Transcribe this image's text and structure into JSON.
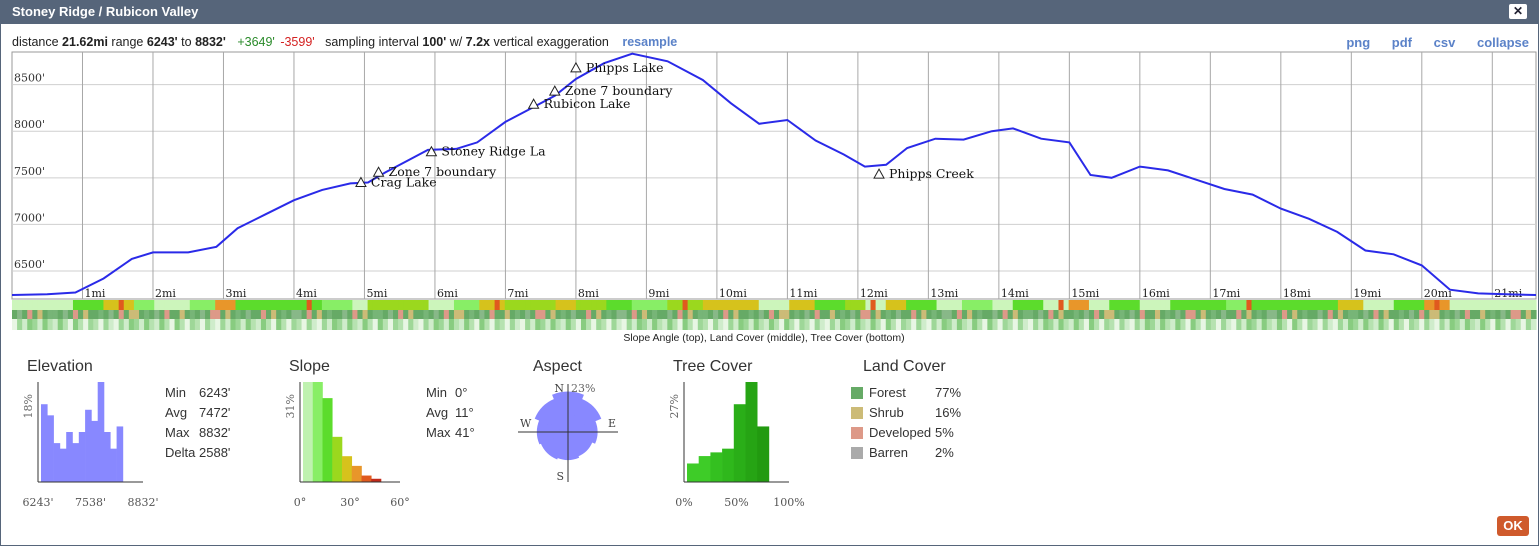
{
  "window": {
    "title": "Stoney Ridge / Rubicon Valley",
    "close": "✕"
  },
  "summary": {
    "distance_label": "distance",
    "distance": "21.62mi",
    "range_label": "range",
    "range_min": "6243'",
    "to_label": "to",
    "range_max": "8832'",
    "gain": "+3649'",
    "loss": "-3599'",
    "interval_label": "sampling interval",
    "interval": "100'",
    "w_label": "w/",
    "exaggeration": "7.2x",
    "exag_label": "vertical exaggeration",
    "resample": "resample"
  },
  "actions": {
    "png": "png",
    "pdf": "pdf",
    "csv": "csv",
    "collapse": "collapse"
  },
  "chart_data": {
    "type": "line",
    "x_unit": "mi",
    "y_unit": "ft",
    "xlim": [
      0,
      21.62
    ],
    "ylim": [
      6200,
      8850
    ],
    "y_ticks": [
      "6500'",
      "7000'",
      "7500'",
      "8000'",
      "8500'"
    ],
    "x_ticks": [
      "1mi",
      "2mi",
      "3mi",
      "4mi",
      "5mi",
      "6mi",
      "7mi",
      "8mi",
      "9mi",
      "10mi",
      "11mi",
      "12mi",
      "13mi",
      "14mi",
      "15mi",
      "16mi",
      "17mi",
      "18mi",
      "19mi",
      "20mi",
      "21mi"
    ],
    "series": [
      {
        "x": [
          0,
          0.5,
          0.9,
          1.3,
          1.7,
          2.0,
          2.5,
          2.9,
          3.2,
          3.6,
          4.0,
          4.4,
          4.8,
          5.05,
          5.3,
          5.6,
          5.9,
          6.3,
          6.6,
          7.0,
          7.3,
          7.7,
          8.0,
          8.4,
          8.8,
          9.3,
          9.8,
          10.2,
          10.6,
          11.0,
          11.4,
          11.8,
          12.1,
          12.4,
          12.7,
          13.1,
          13.5,
          13.9,
          14.2,
          14.6,
          15.0,
          15.3,
          15.6,
          16.0,
          16.4,
          16.8,
          17.2,
          17.6,
          18.0,
          18.4,
          18.8,
          19.2,
          19.6,
          20.0,
          20.4,
          20.8,
          21.2,
          21.62
        ],
        "y": [
          6243,
          6250,
          6270,
          6420,
          6630,
          6700,
          6700,
          6760,
          6960,
          7110,
          7260,
          7370,
          7440,
          7450,
          7560,
          7680,
          7800,
          7810,
          7880,
          8100,
          8220,
          8380,
          8560,
          8730,
          8832,
          8750,
          8550,
          8300,
          8080,
          8120,
          7900,
          7750,
          7620,
          7640,
          7820,
          7920,
          7910,
          8000,
          8030,
          7920,
          7880,
          7530,
          7500,
          7620,
          7580,
          7480,
          7380,
          7320,
          7170,
          7060,
          6920,
          6720,
          6680,
          6560,
          6300,
          6260,
          6250,
          6243
        ]
      }
    ],
    "annotations": [
      {
        "label": "Crag Lake",
        "x": 4.95,
        "y": 7450
      },
      {
        "label": "Zone 7 boundary",
        "x": 5.2,
        "y": 7560
      },
      {
        "label": "Stoney Ridge La",
        "x": 5.95,
        "y": 7780
      },
      {
        "label": "Rubicon Lake",
        "x": 7.4,
        "y": 8290
      },
      {
        "label": "Zone 7 boundary",
        "x": 7.7,
        "y": 8430
      },
      {
        "label": "Phipps Lake",
        "x": 8.0,
        "y": 8680
      },
      {
        "label": "Phipps Creek",
        "x": 12.3,
        "y": 7540
      }
    ],
    "caption": "Slope Angle (top), Land Cover (middle), Tree Cover (bottom)"
  },
  "elevation": {
    "title": "Elevation",
    "ylabel": "18%",
    "xticks": [
      "6243'",
      "7538'",
      "8832'"
    ],
    "bars": [
      14,
      12,
      7,
      6,
      9,
      7,
      9,
      13,
      11,
      18,
      9,
      6,
      10
    ],
    "color": "#8888ff",
    "stats": [
      [
        "Min",
        "6243'"
      ],
      [
        "Avg",
        "7472'"
      ],
      [
        "Max",
        "8832'"
      ],
      [
        "Delta",
        "2588'"
      ]
    ]
  },
  "slope": {
    "title": "Slope",
    "ylabel": "31%",
    "xticks": [
      "0°",
      "30°",
      "60°"
    ],
    "bars": [
      31,
      31,
      26,
      14,
      8,
      5,
      2,
      1
    ],
    "colors": [
      "#bff2b0",
      "#88ee66",
      "#5cdc2c",
      "#9bd81e",
      "#d6c21c",
      "#e8962a",
      "#e05a1e",
      "#c22a1a"
    ],
    "stats": [
      [
        "Min",
        "0°"
      ],
      [
        "Avg",
        "11°"
      ],
      [
        "Max",
        "41°"
      ]
    ]
  },
  "aspect": {
    "title": "Aspect",
    "n": "N",
    "pct": "23%",
    "e": "E",
    "s": "S",
    "w": "W",
    "petals": [
      23,
      20,
      16,
      14,
      15,
      16,
      17,
      20
    ],
    "color": "#8888ff"
  },
  "tree_cover": {
    "title": "Tree Cover",
    "ylabel": "27%",
    "xticks": [
      "0%",
      "50%",
      "100%"
    ],
    "bars": [
      5,
      7,
      8,
      9,
      21,
      27,
      15
    ],
    "colors": [
      "#3ecc28",
      "#3ecc28",
      "#34c020",
      "#2fb81c",
      "#2aae18",
      "#26a414",
      "#229a10"
    ]
  },
  "land_cover": {
    "title": "Land Cover",
    "items": [
      {
        "label": "Forest",
        "pct": "77%",
        "color": "#66aa66"
      },
      {
        "label": "Shrub",
        "pct": "16%",
        "color": "#ccbb77"
      },
      {
        "label": "Developed",
        "pct": "5%",
        "color": "#dd9988"
      },
      {
        "label": "Barren",
        "pct": "2%",
        "color": "#aaaaaa"
      }
    ]
  },
  "ok": "OK"
}
